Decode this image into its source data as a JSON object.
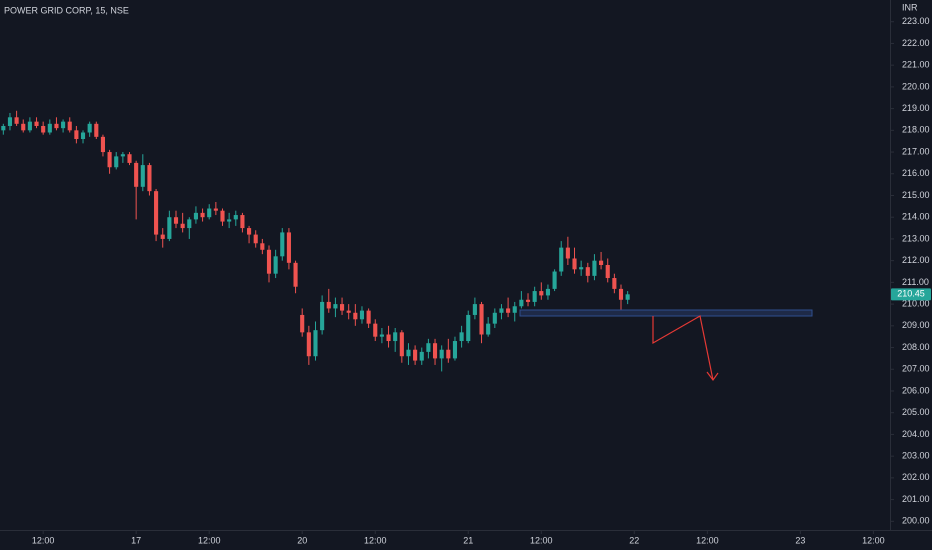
{
  "chart_data": {
    "type": "candlestick",
    "title": "POWER GRID CORP, 15, NSE",
    "y_axis_label": "INR",
    "up_color": "#26a69a",
    "down_color": "#ef5350",
    "grid": false,
    "x": [
      0,
      1,
      2,
      3,
      4,
      5,
      6,
      7,
      8,
      9,
      10,
      11,
      12,
      13,
      14,
      15,
      16,
      17,
      18,
      19,
      20,
      21,
      22,
      23,
      24,
      25,
      26,
      27,
      28,
      29,
      30,
      31,
      32,
      33,
      34,
      35,
      36,
      37,
      38,
      39,
      40,
      41,
      42,
      43,
      44,
      45,
      46,
      47,
      48,
      49,
      50,
      51,
      52,
      53,
      54,
      55,
      56,
      57,
      58,
      59,
      60,
      61,
      62,
      63,
      64,
      65,
      66,
      67,
      68,
      69,
      70,
      71,
      72,
      73,
      74,
      75,
      76,
      77,
      78,
      79,
      80,
      81,
      82,
      83,
      84,
      85,
      86,
      87,
      88,
      89,
      90,
      91,
      92,
      93,
      94
    ],
    "open": [
      218.0,
      218.2,
      218.6,
      218.3,
      218.0,
      218.4,
      218.2,
      217.9,
      218.3,
      218.1,
      218.4,
      218.0,
      217.6,
      217.9,
      218.3,
      217.7,
      217.0,
      216.3,
      216.8,
      216.9,
      216.5,
      215.4,
      216.4,
      215.2,
      213.2,
      213.0,
      214.0,
      213.7,
      213.5,
      213.9,
      214.2,
      214.0,
      214.4,
      214.3,
      213.8,
      213.9,
      214.1,
      213.5,
      213.2,
      212.8,
      212.5,
      211.4,
      212.2,
      213.3,
      211.9,
      209.5,
      208.7,
      207.6,
      208.8,
      210.1,
      209.8,
      210.0,
      209.7,
      209.6,
      209.3,
      209.7,
      209.1,
      208.5,
      208.6,
      208.3,
      208.7,
      207.6,
      207.9,
      207.4,
      207.8,
      208.2,
      207.5,
      207.9,
      207.5,
      208.3,
      208.3,
      209.5,
      210.0,
      208.6,
      209.1,
      209.6,
      209.8,
      209.6,
      209.9,
      210.2,
      210.1,
      210.6,
      210.4,
      210.7,
      211.5,
      212.6,
      212.1,
      211.6,
      211.7,
      211.3,
      212.0,
      211.8,
      211.2,
      210.7,
      210.2
    ],
    "high": [
      218.3,
      218.8,
      218.9,
      218.5,
      218.6,
      218.6,
      218.4,
      218.5,
      218.6,
      218.5,
      218.6,
      218.2,
      218.0,
      218.4,
      218.4,
      217.8,
      217.1,
      217.0,
      217.0,
      217.0,
      216.6,
      216.9,
      216.5,
      215.3,
      213.5,
      214.3,
      214.3,
      214.2,
      214.0,
      214.5,
      214.4,
      214.6,
      214.7,
      214.4,
      214.2,
      214.3,
      214.2,
      213.6,
      213.4,
      213.0,
      212.7,
      212.5,
      213.5,
      213.5,
      212.0,
      209.8,
      209.0,
      209.2,
      210.4,
      210.7,
      210.3,
      210.3,
      210.0,
      210.0,
      209.9,
      209.8,
      209.3,
      208.9,
      209.0,
      208.9,
      208.8,
      208.2,
      208.1,
      208.0,
      208.4,
      208.4,
      208.1,
      208.4,
      208.5,
      209.0,
      209.7,
      210.3,
      210.1,
      209.4,
      209.8,
      210.0,
      210.3,
      210.1,
      210.6,
      210.5,
      210.8,
      211.0,
      210.9,
      211.6,
      212.9,
      213.1,
      212.6,
      212.0,
      211.9,
      212.3,
      212.4,
      212.1,
      211.4,
      210.9,
      210.6
    ],
    "low": [
      217.8,
      218.0,
      218.2,
      217.9,
      217.9,
      218.1,
      217.8,
      217.8,
      218.0,
      217.9,
      217.9,
      217.4,
      217.4,
      217.7,
      217.6,
      216.8,
      216.0,
      216.2,
      216.5,
      216.4,
      213.9,
      215.2,
      215.0,
      212.9,
      212.6,
      212.9,
      213.5,
      213.3,
      213.0,
      213.7,
      213.8,
      213.9,
      214.1,
      213.6,
      213.5,
      213.6,
      213.3,
      212.8,
      212.6,
      212.3,
      211.0,
      211.2,
      212.0,
      211.6,
      210.5,
      208.5,
      207.2,
      207.4,
      208.6,
      209.6,
      209.4,
      209.5,
      209.3,
      209.0,
      209.1,
      208.9,
      208.3,
      208.2,
      208.0,
      207.8,
      207.3,
      207.2,
      207.2,
      207.2,
      207.5,
      207.2,
      206.9,
      207.3,
      207.4,
      208.0,
      208.2,
      209.3,
      208.2,
      208.5,
      208.9,
      209.3,
      209.4,
      209.2,
      209.8,
      209.9,
      209.9,
      210.2,
      210.2,
      210.6,
      211.3,
      211.8,
      211.4,
      211.3,
      211.0,
      211.1,
      211.6,
      211.0,
      210.5,
      209.7,
      210.0
    ],
    "close": [
      218.2,
      218.6,
      218.3,
      218.0,
      218.4,
      218.2,
      217.9,
      218.3,
      218.1,
      218.4,
      218.0,
      217.6,
      217.9,
      218.3,
      217.7,
      217.0,
      216.3,
      216.8,
      216.9,
      216.5,
      215.4,
      216.4,
      215.2,
      213.2,
      213.0,
      214.0,
      213.7,
      213.5,
      213.9,
      214.2,
      214.0,
      214.4,
      214.3,
      213.8,
      213.9,
      214.1,
      213.5,
      213.2,
      212.8,
      212.5,
      211.4,
      212.2,
      213.3,
      211.9,
      210.8,
      208.7,
      207.6,
      208.8,
      210.1,
      209.8,
      210.0,
      209.7,
      209.6,
      209.3,
      209.7,
      209.1,
      208.5,
      208.6,
      208.3,
      208.7,
      207.6,
      207.9,
      207.4,
      207.8,
      208.2,
      207.5,
      207.9,
      207.5,
      208.3,
      208.7,
      209.5,
      210.0,
      208.6,
      209.1,
      209.6,
      209.8,
      209.6,
      209.9,
      210.2,
      210.1,
      210.6,
      210.4,
      210.7,
      211.5,
      212.6,
      212.1,
      211.6,
      211.7,
      211.3,
      212.0,
      211.8,
      211.2,
      210.7,
      210.2,
      210.45
    ],
    "xlim": [
      -0.5,
      133.5
    ],
    "xticks": [
      {
        "value": 6,
        "label": "12:00"
      },
      {
        "value": 20,
        "label": "17"
      },
      {
        "value": 31,
        "label": "12:00"
      },
      {
        "value": 45,
        "label": "20"
      },
      {
        "value": 56,
        "label": "12:00"
      },
      {
        "value": 70,
        "label": "21"
      },
      {
        "value": 81,
        "label": "12:00"
      },
      {
        "value": 95,
        "label": "22"
      },
      {
        "value": 106,
        "label": "12:00"
      },
      {
        "value": 120,
        "label": "23"
      },
      {
        "value": 131,
        "label": "12:00"
      }
    ],
    "ylim": [
      199.6,
      224.0
    ],
    "yticks": [
      {
        "value": 200,
        "label": "200.00"
      },
      {
        "value": 201,
        "label": "201.00"
      },
      {
        "value": 202,
        "label": "202.00"
      },
      {
        "value": 203,
        "label": "203.00"
      },
      {
        "value": 204,
        "label": "204.00"
      },
      {
        "value": 205,
        "label": "205.00"
      },
      {
        "value": 206,
        "label": "206.00"
      },
      {
        "value": 207,
        "label": "207.00"
      },
      {
        "value": 208,
        "label": "208.00"
      },
      {
        "value": 209,
        "label": "209.00"
      },
      {
        "value": 210,
        "label": "210.00"
      },
      {
        "value": 211,
        "label": "211.00"
      },
      {
        "value": 212,
        "label": "212.00"
      },
      {
        "value": 213,
        "label": "213.00"
      },
      {
        "value": 214,
        "label": "214.00"
      },
      {
        "value": 215,
        "label": "215.00"
      },
      {
        "value": 216,
        "label": "216.00"
      },
      {
        "value": 217,
        "label": "217.00"
      },
      {
        "value": 218,
        "label": "218.00"
      },
      {
        "value": 219,
        "label": "219.00"
      },
      {
        "value": 220,
        "label": "220.00"
      },
      {
        "value": 221,
        "label": "221.00"
      },
      {
        "value": 222,
        "label": "222.00"
      },
      {
        "value": 223,
        "label": "223.00"
      }
    ]
  }
}
